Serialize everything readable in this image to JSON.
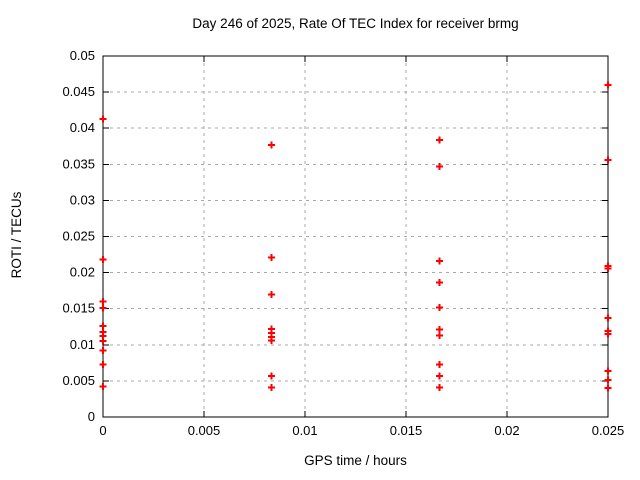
{
  "chart_data": {
    "type": "scatter",
    "title": "Day 246 of 2025, Rate Of TEC Index for receiver brmg",
    "xlabel": "GPS time / hours",
    "ylabel": "ROTI / TECUs",
    "xlim": [
      0,
      0.025
    ],
    "ylim": [
      0,
      0.05
    ],
    "grid": true,
    "legend": false,
    "marker": "plus",
    "colors": {
      "marker": "#ff0000",
      "grid": "#a9a9a9",
      "axis": "#000000",
      "text": "#000000"
    },
    "x_ticks": [
      {
        "v": 0,
        "label": "0"
      },
      {
        "v": 0.005,
        "label": "0.005"
      },
      {
        "v": 0.01,
        "label": "0.01"
      },
      {
        "v": 0.015,
        "label": "0.015"
      },
      {
        "v": 0.02,
        "label": "0.02"
      },
      {
        "v": 0.025,
        "label": "0.025"
      }
    ],
    "y_ticks": [
      {
        "v": 0,
        "label": "0"
      },
      {
        "v": 0.005,
        "label": "0.005"
      },
      {
        "v": 0.01,
        "label": "0.01"
      },
      {
        "v": 0.015,
        "label": "0.015"
      },
      {
        "v": 0.02,
        "label": "0.02"
      },
      {
        "v": 0.025,
        "label": "0.025"
      },
      {
        "v": 0.03,
        "label": "0.03"
      },
      {
        "v": 0.035,
        "label": "0.035"
      },
      {
        "v": 0.04,
        "label": "0.04"
      },
      {
        "v": 0.045,
        "label": "0.045"
      },
      {
        "v": 0.05,
        "label": "0.05"
      }
    ],
    "points": [
      [
        0,
        0.0413
      ],
      [
        0,
        0.0218
      ],
      [
        0,
        0.016
      ],
      [
        0,
        0.0151
      ],
      [
        0,
        0.0126
      ],
      [
        0,
        0.0118
      ],
      [
        0,
        0.0112
      ],
      [
        0,
        0.0105
      ],
      [
        0,
        0.0092
      ],
      [
        0,
        0.0073
      ],
      [
        0,
        0.0042
      ],
      [
        0.008333,
        0.0377
      ],
      [
        0.008333,
        0.0221
      ],
      [
        0.008333,
        0.017
      ],
      [
        0.008333,
        0.0122
      ],
      [
        0.008333,
        0.0116
      ],
      [
        0.008333,
        0.0111
      ],
      [
        0.008333,
        0.0106
      ],
      [
        0.008333,
        0.0057
      ],
      [
        0.008333,
        0.0041
      ],
      [
        0.016667,
        0.0384
      ],
      [
        0.016667,
        0.0347
      ],
      [
        0.016667,
        0.0216
      ],
      [
        0.016667,
        0.0186
      ],
      [
        0.016667,
        0.0152
      ],
      [
        0.016667,
        0.0121
      ],
      [
        0.016667,
        0.0113
      ],
      [
        0.016667,
        0.0073
      ],
      [
        0.016667,
        0.0057
      ],
      [
        0.016667,
        0.0041
      ],
      [
        0.025,
        0.046
      ],
      [
        0.025,
        0.0356
      ],
      [
        0.025,
        0.0209
      ],
      [
        0.025,
        0.0206
      ],
      [
        0.025,
        0.0137
      ],
      [
        0.025,
        0.0119
      ],
      [
        0.025,
        0.0115
      ],
      [
        0.025,
        0.0064
      ],
      [
        0.025,
        0.0051
      ],
      [
        0.025,
        0.004
      ]
    ]
  }
}
